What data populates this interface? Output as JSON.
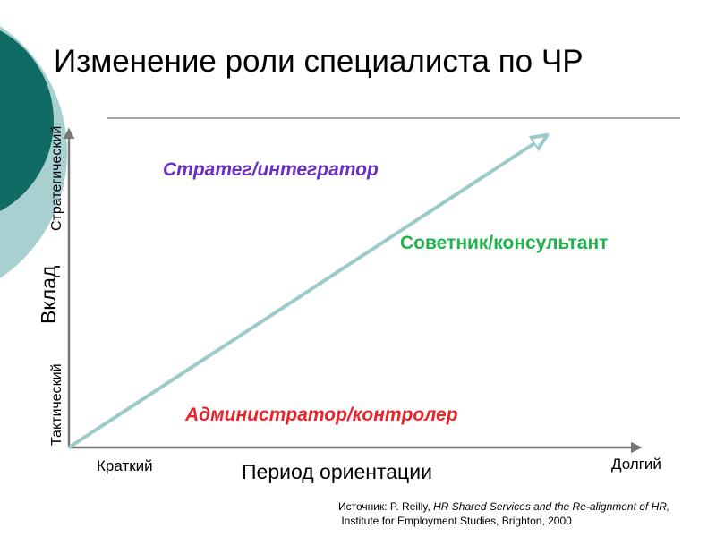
{
  "title": "Изменение роли специалиста по ЧР",
  "y_axis": {
    "label": "Вклад",
    "top": "Стратегический",
    "bottom": "Тактический"
  },
  "x_axis": {
    "label": "Период ориентации",
    "left": "Краткий",
    "right": "Долгий"
  },
  "roles": [
    "Стратег/интегратор",
    "Советник/консультант",
    "Администратор/контролер"
  ],
  "source": {
    "prefix": "Источник: P. Reilly, ",
    "work": "HR Shared Services and the Re-alignment of HR,",
    "line2": " Institute for Employment Studies, Brighton, 2000"
  }
}
